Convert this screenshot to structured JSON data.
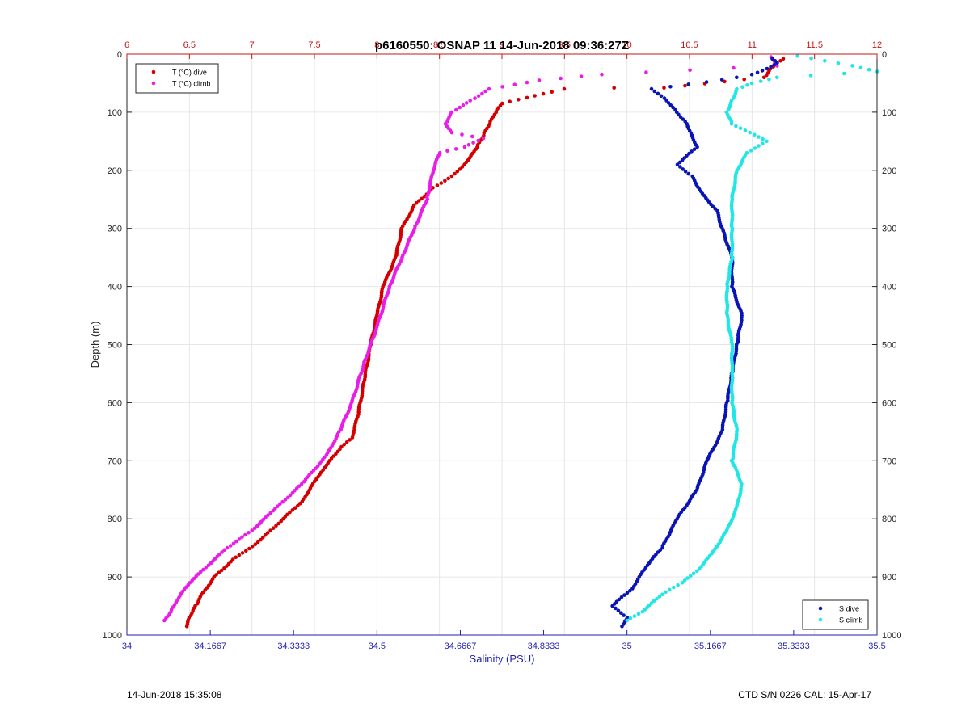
{
  "chart_data": {
    "type": "scatter",
    "title": "p6160550: OSNAP 11 14-Jun-2018 09:36:27Z",
    "ylabel": "Depth (m)",
    "xlabel_bottom": "Salinity (PSU)",
    "xlabel_top": "",
    "ylim": [
      0,
      1000
    ],
    "y_reversed": true,
    "y_ticks": [
      0,
      100,
      200,
      300,
      400,
      500,
      600,
      700,
      800,
      900,
      1000
    ],
    "x_bottom_lim": [
      34,
      35.5
    ],
    "x_bottom_ticks": [
      34,
      34.1667,
      34.3333,
      34.5,
      34.6667,
      34.8333,
      35,
      35.1667,
      35.3333,
      35.5
    ],
    "x_top_lim": [
      6,
      12
    ],
    "x_top_ticks": [
      6,
      6.5,
      7,
      7.5,
      8,
      8.5,
      9,
      9.5,
      10,
      10.5,
      11,
      11.5,
      12
    ],
    "grid": true,
    "legend_top": {
      "placement": "top-left",
      "entries": [
        "T (°C) dive",
        "T (°C) climb"
      ]
    },
    "legend_bottom": {
      "placement": "bottom-right",
      "entries": [
        "S dive",
        "S climb"
      ]
    },
    "colors": {
      "t_dive": "#d40000",
      "t_climb": "#e81ee8",
      "s_dive": "#0a14b4",
      "s_climb": "#22e6e6",
      "bottom_axis": "#1f1fb4",
      "top_axis": "#c01818",
      "grid": "#e6e6e6"
    },
    "series": [
      {
        "name": "T (°C) dive",
        "axis": "top",
        "color": "#d40000",
        "points": [
          [
            11.25,
            8
          ],
          [
            11.2,
            15
          ],
          [
            11.15,
            25
          ],
          [
            11.1,
            40
          ],
          [
            10.3,
            58
          ],
          [
            9.9,
            58
          ],
          [
            9.5,
            60
          ],
          [
            9.4,
            65
          ],
          [
            9.2,
            75
          ],
          [
            9.0,
            85
          ],
          [
            8.95,
            100
          ],
          [
            8.9,
            120
          ],
          [
            8.85,
            140
          ],
          [
            8.8,
            160
          ],
          [
            8.75,
            175
          ],
          [
            8.7,
            190
          ],
          [
            8.6,
            210
          ],
          [
            8.45,
            230
          ],
          [
            8.3,
            260
          ],
          [
            8.2,
            300
          ],
          [
            8.15,
            350
          ],
          [
            8.05,
            400
          ],
          [
            8.0,
            450
          ],
          [
            7.95,
            500
          ],
          [
            7.9,
            560
          ],
          [
            7.85,
            620
          ],
          [
            7.8,
            660
          ],
          [
            7.7,
            680
          ],
          [
            7.55,
            720
          ],
          [
            7.4,
            770
          ],
          [
            7.25,
            800
          ],
          [
            7.05,
            840
          ],
          [
            6.85,
            870
          ],
          [
            6.7,
            900
          ],
          [
            6.6,
            930
          ],
          [
            6.55,
            950
          ],
          [
            6.5,
            970
          ],
          [
            6.48,
            985
          ]
        ]
      },
      {
        "name": "T (°C) climb",
        "axis": "top",
        "color": "#e81ee8",
        "points": [
          [
            11.15,
            5
          ],
          [
            11.2,
            20
          ],
          [
            9.8,
            35
          ],
          [
            9.3,
            45
          ],
          [
            8.9,
            60
          ],
          [
            8.75,
            80
          ],
          [
            8.6,
            100
          ],
          [
            8.55,
            120
          ],
          [
            8.6,
            135
          ],
          [
            8.85,
            145
          ],
          [
            8.7,
            160
          ],
          [
            8.5,
            170
          ],
          [
            8.45,
            200
          ],
          [
            8.4,
            250
          ],
          [
            8.3,
            300
          ],
          [
            8.2,
            350
          ],
          [
            8.1,
            400
          ],
          [
            8.0,
            470
          ],
          [
            7.9,
            530
          ],
          [
            7.8,
            600
          ],
          [
            7.7,
            650
          ],
          [
            7.6,
            690
          ],
          [
            7.4,
            740
          ],
          [
            7.15,
            790
          ],
          [
            7.0,
            820
          ],
          [
            6.8,
            850
          ],
          [
            6.65,
            880
          ],
          [
            6.5,
            910
          ],
          [
            6.4,
            940
          ],
          [
            6.35,
            960
          ],
          [
            6.3,
            975
          ]
        ]
      },
      {
        "name": "S dive",
        "axis": "bottom",
        "color": "#0a14b4",
        "points": [
          [
            35.29,
            8
          ],
          [
            35.3,
            15
          ],
          [
            35.28,
            25
          ],
          [
            35.25,
            35
          ],
          [
            35.22,
            40
          ],
          [
            35.16,
            48
          ],
          [
            35.05,
            60
          ],
          [
            35.08,
            80
          ],
          [
            35.1,
            100
          ],
          [
            35.12,
            120
          ],
          [
            35.13,
            140
          ],
          [
            35.14,
            160
          ],
          [
            35.1,
            190
          ],
          [
            35.13,
            210
          ],
          [
            35.15,
            240
          ],
          [
            35.18,
            270
          ],
          [
            35.19,
            300
          ],
          [
            35.21,
            350
          ],
          [
            35.21,
            400
          ],
          [
            35.23,
            450
          ],
          [
            35.22,
            500
          ],
          [
            35.21,
            550
          ],
          [
            35.2,
            600
          ],
          [
            35.19,
            650
          ],
          [
            35.16,
            700
          ],
          [
            35.14,
            750
          ],
          [
            35.1,
            800
          ],
          [
            35.07,
            850
          ],
          [
            35.04,
            880
          ],
          [
            35.01,
            920
          ],
          [
            34.97,
            950
          ],
          [
            35.0,
            970
          ],
          [
            34.99,
            985
          ]
        ]
      },
      {
        "name": "S climb",
        "axis": "bottom",
        "color": "#22e6e6",
        "points": [
          [
            35.34,
            3
          ],
          [
            35.45,
            20
          ],
          [
            35.5,
            30
          ],
          [
            35.3,
            40
          ],
          [
            35.25,
            50
          ],
          [
            35.22,
            60
          ],
          [
            35.21,
            80
          ],
          [
            35.2,
            100
          ],
          [
            35.21,
            120
          ],
          [
            35.28,
            150
          ],
          [
            35.24,
            170
          ],
          [
            35.22,
            200
          ],
          [
            35.21,
            250
          ],
          [
            35.21,
            300
          ],
          [
            35.21,
            350
          ],
          [
            35.2,
            400
          ],
          [
            35.2,
            450
          ],
          [
            35.21,
            500
          ],
          [
            35.21,
            550
          ],
          [
            35.21,
            600
          ],
          [
            35.22,
            650
          ],
          [
            35.21,
            700
          ],
          [
            35.23,
            740
          ],
          [
            35.22,
            780
          ],
          [
            35.2,
            820
          ],
          [
            35.17,
            860
          ],
          [
            35.14,
            890
          ],
          [
            35.11,
            910
          ],
          [
            35.07,
            930
          ],
          [
            35.03,
            960
          ],
          [
            35.0,
            975
          ]
        ]
      }
    ]
  },
  "footer": {
    "timestamp": "14-Jun-2018 15:35:08",
    "ctd": "CTD S/N 0226  CAL: 15-Apr-17"
  }
}
